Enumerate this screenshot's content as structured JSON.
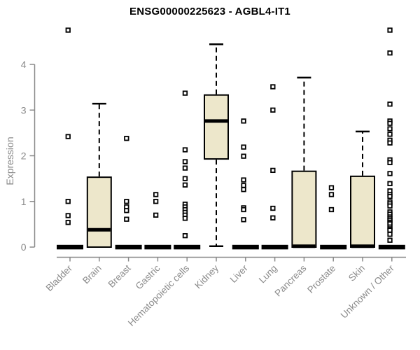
{
  "page": {
    "background": "#ffffff"
  },
  "chart_data": {
    "type": "boxplot",
    "title": "ENSG00000225623 - AGBL4-IT1",
    "ylabel": "Expression",
    "xlabel": "",
    "ylim": [
      0,
      4.8
    ],
    "yticks": [
      0,
      1,
      2,
      3,
      4
    ],
    "grid": false,
    "legend": "none",
    "categories": [
      "Bladder",
      "Brain",
      "Breast",
      "Gastric",
      "Hematopoietic cells",
      "Kidney",
      "Liver",
      "Lung",
      "Pancreas",
      "Prostate",
      "Skin",
      "Unknown / Other"
    ],
    "series": [
      {
        "name": "Bladder",
        "q1": 0,
        "median": 0,
        "q3": 0,
        "whisker_low": 0,
        "whisker_high": 0,
        "outliers": [
          4.75,
          2.42,
          1.0,
          0.69,
          0.54
        ]
      },
      {
        "name": "Brain",
        "q1": 0,
        "median": 0.38,
        "q3": 1.53,
        "whisker_low": 0,
        "whisker_high": 3.14,
        "outliers": []
      },
      {
        "name": "Breast",
        "q1": 0,
        "median": 0,
        "q3": 0,
        "whisker_low": 0,
        "whisker_high": 0,
        "outliers": [
          2.38,
          1.0,
          0.88,
          0.8,
          0.61
        ]
      },
      {
        "name": "Gastric",
        "q1": 0,
        "median": 0,
        "q3": 0,
        "whisker_low": 0,
        "whisker_high": 0,
        "outliers": [
          1.15,
          1.0,
          0.7
        ]
      },
      {
        "name": "Hematopoietic cells",
        "q1": 0,
        "median": 0,
        "q3": 0,
        "whisker_low": 0,
        "whisker_high": 0,
        "outliers": [
          3.37,
          2.13,
          1.87,
          1.73,
          1.5,
          1.36,
          0.94,
          0.88,
          0.82,
          0.76,
          0.7,
          0.63,
          0.25
        ]
      },
      {
        "name": "Kidney",
        "q1": 1.93,
        "median": 2.76,
        "q3": 3.33,
        "whisker_low": 0.02,
        "whisker_high": 4.44,
        "outliers": []
      },
      {
        "name": "Liver",
        "q1": 0,
        "median": 0,
        "q3": 0,
        "whisker_low": 0,
        "whisker_high": 0,
        "outliers": [
          2.76,
          2.19,
          1.99,
          1.47,
          1.35,
          1.26,
          0.86,
          0.82,
          0.6
        ]
      },
      {
        "name": "Lung",
        "q1": 0,
        "median": 0,
        "q3": 0,
        "whisker_low": 0,
        "whisker_high": 0,
        "outliers": [
          3.51,
          3.0,
          1.68,
          0.85,
          0.64
        ]
      },
      {
        "name": "Pancreas",
        "q1": 0,
        "median": 0.02,
        "q3": 1.66,
        "whisker_low": 0,
        "whisker_high": 3.71,
        "outliers": []
      },
      {
        "name": "Prostate",
        "q1": 0,
        "median": 0,
        "q3": 0,
        "whisker_low": 0,
        "whisker_high": 0,
        "outliers": [
          1.3,
          1.15,
          0.82
        ]
      },
      {
        "name": "Skin",
        "q1": 0,
        "median": 0.02,
        "q3": 1.55,
        "whisker_low": 0,
        "whisker_high": 2.53,
        "outliers": []
      },
      {
        "name": "Unknown / Other",
        "q1": 0,
        "median": 0,
        "q3": 0,
        "whisker_low": 0,
        "whisker_high": 0,
        "outliers": [
          4.75,
          4.25,
          3.13,
          2.76,
          2.71,
          2.59,
          2.47,
          2.34,
          2.28,
          1.91,
          1.85,
          1.61,
          1.39,
          1.23,
          1.15,
          1.11,
          0.99,
          0.95,
          0.9,
          0.77,
          0.72,
          0.66,
          0.62,
          0.58,
          0.54,
          0.51,
          0.44,
          0.4,
          0.37,
          0.28,
          0.15
        ]
      }
    ],
    "colors": {
      "box_fill": "#EDE7CB",
      "box_stroke": "#000000",
      "median": "#000000",
      "outlier_stroke": "#000000",
      "outlier_fill": "#ffffff",
      "axis": "#8a8a8a",
      "tick_label": "#8a8a8a",
      "title": "#000000"
    }
  }
}
